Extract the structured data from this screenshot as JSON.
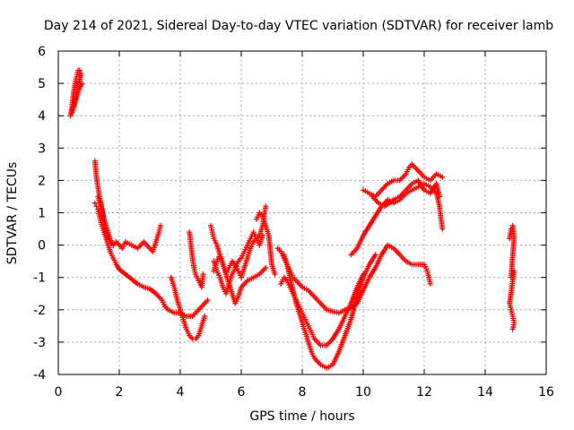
{
  "chart_data": {
    "type": "scatter",
    "title": "Day 214 of 2021, Sidereal Day-to-day VTEC variation (SDTVAR) for receiver lamb",
    "xlabel": "GPS time / hours",
    "ylabel": "SDTVAR / TECUs",
    "xlim": [
      0,
      16
    ],
    "ylim": [
      -4,
      6
    ],
    "xticks": [
      "0",
      "2",
      "4",
      "6",
      "8",
      "10",
      "12",
      "14",
      "16"
    ],
    "yticks": [
      "-4",
      "-3",
      "-2",
      "-1",
      "0",
      "1",
      "2",
      "3",
      "4",
      "5",
      "6"
    ],
    "grid": true,
    "marker": "+",
    "color": "#ff0000",
    "series": [
      {
        "points": [
          [
            0.4,
            4.0
          ],
          [
            0.45,
            4.3
          ],
          [
            0.5,
            4.7
          ],
          [
            0.55,
            5.0
          ],
          [
            0.6,
            5.2
          ],
          [
            0.65,
            5.4
          ],
          [
            0.7,
            5.4
          ],
          [
            0.75,
            5.3
          ],
          [
            0.45,
            4.1
          ],
          [
            0.55,
            4.4
          ],
          [
            0.65,
            4.7
          ],
          [
            0.72,
            4.9
          ],
          [
            0.78,
            5.0
          ]
        ]
      },
      {
        "points": [
          [
            1.2,
            2.6
          ],
          [
            1.25,
            2.1
          ],
          [
            1.3,
            1.8
          ],
          [
            1.35,
            1.5
          ],
          [
            1.4,
            1.3
          ],
          [
            1.45,
            1.0
          ],
          [
            1.5,
            0.7
          ],
          [
            1.55,
            0.5
          ],
          [
            1.6,
            0.3
          ],
          [
            1.7,
            0.1
          ],
          [
            1.8,
            0.0
          ],
          [
            1.9,
            0.1
          ],
          [
            2.0,
            0.0
          ],
          [
            2.1,
            -0.1
          ],
          [
            2.2,
            0.1
          ],
          [
            2.4,
            0.0
          ],
          [
            2.6,
            -0.1
          ],
          [
            2.8,
            0.1
          ],
          [
            3.0,
            -0.1
          ],
          [
            3.1,
            -0.2
          ],
          [
            3.2,
            0.1
          ],
          [
            3.3,
            0.4
          ],
          [
            3.35,
            0.6
          ]
        ]
      },
      {
        "points": [
          [
            1.2,
            1.3
          ],
          [
            1.25,
            1.2
          ],
          [
            1.3,
            1.1
          ],
          [
            1.35,
            0.9
          ],
          [
            1.4,
            0.7
          ],
          [
            1.5,
            0.4
          ],
          [
            1.6,
            0.1
          ],
          [
            1.7,
            -0.2
          ],
          [
            1.8,
            -0.4
          ],
          [
            1.9,
            -0.6
          ],
          [
            2.0,
            -0.75
          ],
          [
            2.2,
            -0.9
          ],
          [
            2.4,
            -1.05
          ],
          [
            2.6,
            -1.2
          ],
          [
            2.8,
            -1.3
          ],
          [
            3.0,
            -1.35
          ],
          [
            3.2,
            -1.5
          ],
          [
            3.4,
            -1.7
          ],
          [
            3.5,
            -1.9
          ],
          [
            3.6,
            -2.0
          ],
          [
            3.8,
            -2.1
          ],
          [
            4.0,
            -2.1
          ],
          [
            4.2,
            -2.2
          ],
          [
            4.4,
            -2.2
          ],
          [
            4.6,
            -2.0
          ],
          [
            4.8,
            -1.8
          ],
          [
            4.9,
            -1.7
          ]
        ]
      },
      {
        "points": [
          [
            1.3,
            1.5
          ],
          [
            1.4,
            1.2
          ],
          [
            1.5,
            0.8
          ],
          [
            1.6,
            0.5
          ],
          [
            1.7,
            0.2
          ],
          [
            1.8,
            0.0
          ]
        ]
      },
      {
        "points": [
          [
            3.7,
            -1.0
          ],
          [
            3.8,
            -1.3
          ],
          [
            3.9,
            -1.7
          ],
          [
            4.0,
            -2.0
          ],
          [
            4.1,
            -2.3
          ],
          [
            4.2,
            -2.6
          ],
          [
            4.3,
            -2.8
          ],
          [
            4.4,
            -2.9
          ],
          [
            4.5,
            -2.9
          ],
          [
            4.6,
            -2.8
          ],
          [
            4.7,
            -2.5
          ],
          [
            4.8,
            -2.2
          ]
        ]
      },
      {
        "points": [
          [
            4.3,
            0.4
          ],
          [
            4.35,
            0.0
          ],
          [
            4.4,
            -0.4
          ],
          [
            4.45,
            -0.7
          ],
          [
            4.5,
            -0.9
          ],
          [
            4.6,
            -1.1
          ],
          [
            4.7,
            -1.3
          ],
          [
            4.75,
            -0.9
          ]
        ]
      },
      {
        "points": [
          [
            5.0,
            0.6
          ],
          [
            5.05,
            0.4
          ],
          [
            5.1,
            0.2
          ],
          [
            5.2,
            0.0
          ],
          [
            5.3,
            -0.3
          ],
          [
            5.4,
            -0.6
          ],
          [
            5.5,
            -0.9
          ],
          [
            5.6,
            -1.2
          ],
          [
            5.7,
            -1.5
          ],
          [
            5.8,
            -1.8
          ],
          [
            5.9,
            -1.6
          ],
          [
            6.0,
            -1.3
          ],
          [
            6.2,
            -1.1
          ],
          [
            6.4,
            -1.0
          ],
          [
            6.6,
            -0.9
          ],
          [
            6.8,
            -0.7
          ]
        ]
      },
      {
        "points": [
          [
            5.1,
            -0.5
          ],
          [
            5.2,
            -0.8
          ],
          [
            5.3,
            -1.0
          ],
          [
            5.4,
            -1.3
          ],
          [
            5.5,
            -1.5
          ],
          [
            5.6,
            -1.2
          ],
          [
            5.7,
            -0.9
          ],
          [
            5.8,
            -0.7
          ],
          [
            5.9,
            -0.5
          ],
          [
            6.0,
            -0.4
          ],
          [
            6.1,
            -0.2
          ],
          [
            6.2,
            0.0
          ],
          [
            6.3,
            0.2
          ],
          [
            6.4,
            0.4
          ],
          [
            6.5,
            0.2
          ],
          [
            6.6,
            0.3
          ],
          [
            6.7,
            0.6
          ],
          [
            6.75,
            0.9
          ],
          [
            6.8,
            1.2
          ]
        ]
      },
      {
        "points": [
          [
            5.1,
            -0.8
          ],
          [
            5.2,
            -0.5
          ],
          [
            5.3,
            -0.3
          ],
          [
            5.4,
            -0.6
          ],
          [
            5.5,
            -0.9
          ],
          [
            5.6,
            -0.7
          ],
          [
            5.7,
            -0.5
          ],
          [
            5.8,
            -0.6
          ],
          [
            5.9,
            -0.8
          ],
          [
            6.0,
            -1.0
          ],
          [
            6.1,
            -0.7
          ],
          [
            6.2,
            -0.4
          ],
          [
            6.3,
            -0.1
          ],
          [
            6.4,
            0.1
          ],
          [
            6.5,
            0.2
          ],
          [
            6.6,
            0.0
          ],
          [
            6.7,
            0.3
          ]
        ]
      },
      {
        "points": [
          [
            6.5,
            0.8
          ],
          [
            6.6,
            1.0
          ],
          [
            6.7,
            0.9
          ],
          [
            6.8,
            0.6
          ],
          [
            6.9,
            0.3
          ],
          [
            7.0,
            -0.6
          ],
          [
            7.1,
            -0.9
          ]
        ]
      },
      {
        "points": [
          [
            7.2,
            -0.1
          ],
          [
            7.3,
            -0.2
          ],
          [
            7.4,
            -0.4
          ],
          [
            7.5,
            -0.6
          ],
          [
            7.6,
            -0.8
          ],
          [
            7.7,
            -1.0
          ],
          [
            7.8,
            -1.1
          ],
          [
            7.9,
            -1.2
          ],
          [
            8.0,
            -1.3
          ],
          [
            8.2,
            -1.4
          ],
          [
            8.4,
            -1.6
          ],
          [
            8.6,
            -1.8
          ],
          [
            8.8,
            -2.0
          ],
          [
            9.0,
            -2.05
          ],
          [
            9.2,
            -2.1
          ],
          [
            9.4,
            -2.0
          ],
          [
            9.6,
            -1.95
          ],
          [
            9.8,
            -1.8
          ],
          [
            10.0,
            -1.4
          ],
          [
            10.2,
            -1.0
          ],
          [
            10.4,
            -0.7
          ],
          [
            10.6,
            -0.3
          ],
          [
            10.8,
            0.0
          ],
          [
            11.0,
            -0.1
          ],
          [
            11.2,
            -0.3
          ],
          [
            11.4,
            -0.5
          ],
          [
            11.6,
            -0.6
          ],
          [
            11.8,
            -0.6
          ],
          [
            12.0,
            -0.6
          ],
          [
            12.1,
            -0.8
          ],
          [
            12.15,
            -1.0
          ],
          [
            12.2,
            -1.2
          ]
        ]
      },
      {
        "points": [
          [
            7.3,
            -1.2
          ],
          [
            7.4,
            -1.0
          ],
          [
            7.5,
            -1.1
          ],
          [
            7.6,
            -1.3
          ],
          [
            7.7,
            -1.5
          ],
          [
            7.8,
            -1.7
          ],
          [
            7.9,
            -1.9
          ],
          [
            8.0,
            -2.1
          ],
          [
            8.1,
            -2.3
          ],
          [
            8.2,
            -2.5
          ],
          [
            8.3,
            -2.7
          ],
          [
            8.4,
            -2.9
          ],
          [
            8.6,
            -3.1
          ],
          [
            8.8,
            -3.1
          ],
          [
            9.0,
            -2.9
          ],
          [
            9.2,
            -2.6
          ],
          [
            9.4,
            -2.2
          ],
          [
            9.6,
            -1.8
          ],
          [
            9.8,
            -1.3
          ],
          [
            10.0,
            -0.9
          ]
        ]
      },
      {
        "points": [
          [
            7.4,
            -0.3
          ],
          [
            7.5,
            -0.6
          ],
          [
            7.6,
            -1.0
          ],
          [
            7.7,
            -1.4
          ],
          [
            7.8,
            -1.8
          ],
          [
            7.9,
            -2.1
          ],
          [
            8.0,
            -2.4
          ],
          [
            8.1,
            -2.7
          ],
          [
            8.2,
            -3.0
          ],
          [
            8.3,
            -3.3
          ],
          [
            8.4,
            -3.5
          ],
          [
            8.6,
            -3.7
          ],
          [
            8.8,
            -3.8
          ],
          [
            9.0,
            -3.7
          ],
          [
            9.2,
            -3.3
          ],
          [
            9.4,
            -2.8
          ],
          [
            9.6,
            -2.3
          ],
          [
            9.8,
            -1.6
          ],
          [
            10.0,
            -1.0
          ],
          [
            10.2,
            -0.6
          ],
          [
            10.4,
            -0.3
          ]
        ]
      },
      {
        "points": [
          [
            9.6,
            -0.3
          ],
          [
            9.8,
            -0.1
          ],
          [
            10.0,
            0.3
          ],
          [
            10.2,
            0.6
          ],
          [
            10.4,
            0.9
          ],
          [
            10.6,
            1.2
          ],
          [
            10.8,
            1.4
          ],
          [
            11.0,
            1.3
          ],
          [
            11.2,
            1.4
          ],
          [
            11.4,
            1.6
          ],
          [
            11.6,
            1.7
          ],
          [
            11.8,
            1.8
          ],
          [
            12.0,
            1.9
          ],
          [
            12.2,
            1.8
          ],
          [
            12.4,
            1.6
          ],
          [
            12.5,
            1.2
          ],
          [
            12.55,
            0.8
          ],
          [
            12.6,
            0.5
          ]
        ]
      },
      {
        "points": [
          [
            10.0,
            1.7
          ],
          [
            10.2,
            1.6
          ],
          [
            10.4,
            1.5
          ],
          [
            10.6,
            1.7
          ],
          [
            10.8,
            1.9
          ],
          [
            11.0,
            2.0
          ],
          [
            11.2,
            2.0
          ],
          [
            11.4,
            2.2
          ],
          [
            11.5,
            2.4
          ],
          [
            11.6,
            2.5
          ],
          [
            11.8,
            2.3
          ],
          [
            12.0,
            2.1
          ],
          [
            12.2,
            2.0
          ],
          [
            12.4,
            2.2
          ],
          [
            12.6,
            2.1
          ]
        ]
      },
      {
        "points": [
          [
            10.3,
            1.5
          ],
          [
            10.5,
            1.3
          ],
          [
            10.7,
            1.2
          ],
          [
            11.0,
            1.4
          ],
          [
            11.2,
            1.5
          ],
          [
            11.4,
            1.7
          ],
          [
            11.6,
            1.9
          ],
          [
            11.8,
            2.0
          ],
          [
            12.0,
            1.7
          ],
          [
            12.2,
            1.6
          ],
          [
            12.4,
            1.9
          ],
          [
            12.5,
            1.5
          ]
        ]
      },
      {
        "points": [
          [
            14.8,
            0.2
          ],
          [
            14.85,
            0.5
          ],
          [
            14.9,
            0.6
          ],
          [
            14.95,
            0.3
          ],
          [
            14.85,
            -1.0
          ],
          [
            14.9,
            -0.9
          ],
          [
            14.95,
            -0.8
          ],
          [
            14.8,
            -1.8
          ],
          [
            14.85,
            -2.0
          ],
          [
            14.9,
            -2.2
          ],
          [
            14.95,
            -2.4
          ],
          [
            14.9,
            -2.6
          ]
        ]
      }
    ]
  }
}
